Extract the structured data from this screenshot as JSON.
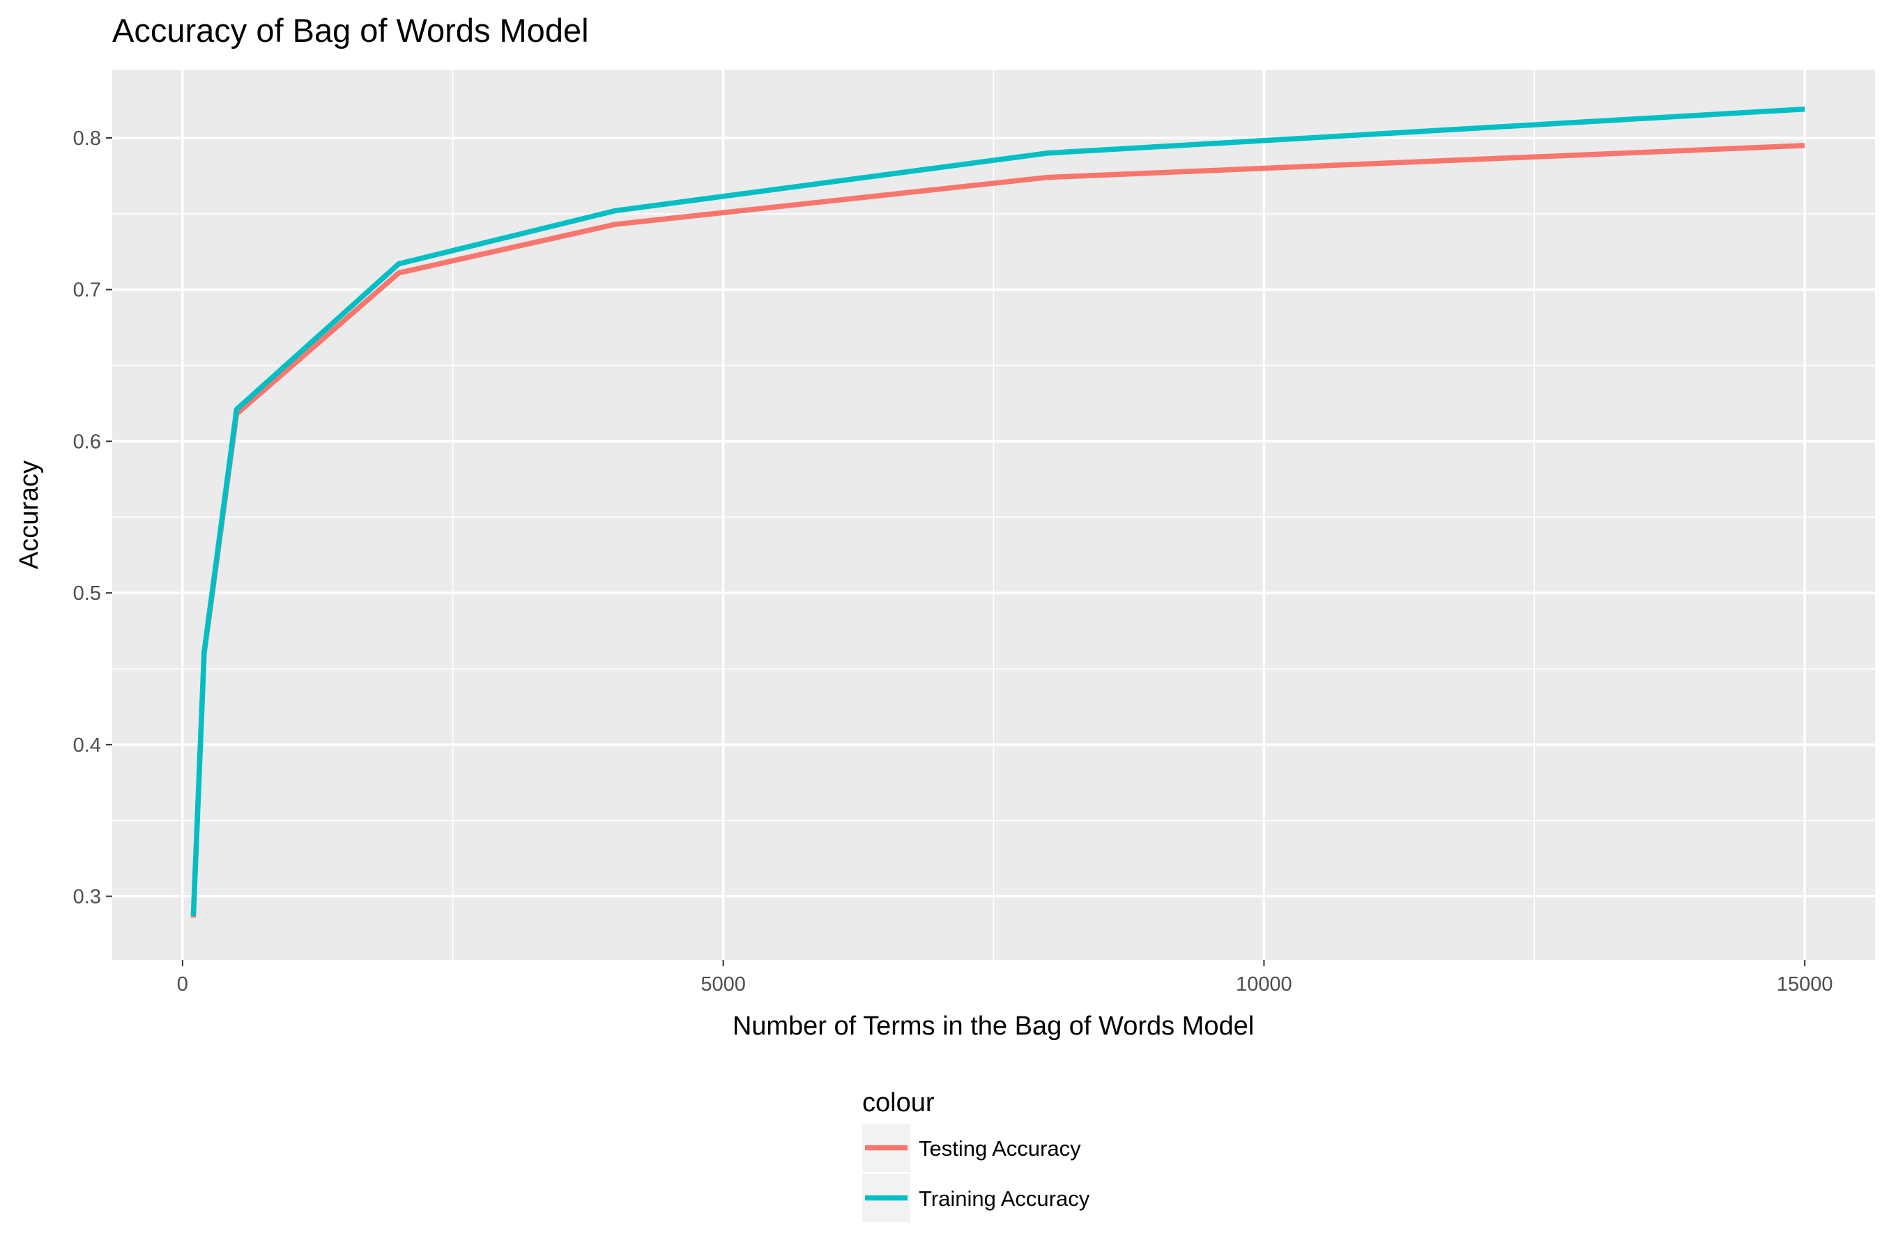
{
  "chart_data": {
    "type": "line",
    "title": "Accuracy of Bag of Words Model",
    "xlabel": "Number of Terms in the Bag of Words Model",
    "ylabel": "Accuracy",
    "xlim": [
      -650,
      15650
    ],
    "ylim": [
      0.258,
      0.845
    ],
    "x_ticks": [
      0,
      5000,
      10000,
      15000
    ],
    "x_tick_labels": [
      "0",
      "5000",
      "10000",
      "15000"
    ],
    "y_ticks": [
      0.3,
      0.4,
      0.5,
      0.6,
      0.7,
      0.8
    ],
    "y_tick_labels": [
      "0.3",
      "0.4",
      "0.5",
      "0.6",
      "0.7",
      "0.8"
    ],
    "grid": true,
    "legend": {
      "title": "colour",
      "position": "bottom"
    },
    "series": [
      {
        "name": "Testing Accuracy",
        "color": "#F8766D",
        "x": [
          100,
          200,
          500,
          2000,
          4000,
          8000,
          15000
        ],
        "y": [
          0.286,
          0.46,
          0.618,
          0.711,
          0.743,
          0.774,
          0.795
        ]
      },
      {
        "name": "Training Accuracy",
        "color": "#00BFC4",
        "x": [
          100,
          200,
          500,
          2000,
          4000,
          8000,
          15000
        ],
        "y": [
          0.287,
          0.461,
          0.621,
          0.717,
          0.752,
          0.79,
          0.819
        ]
      }
    ]
  }
}
